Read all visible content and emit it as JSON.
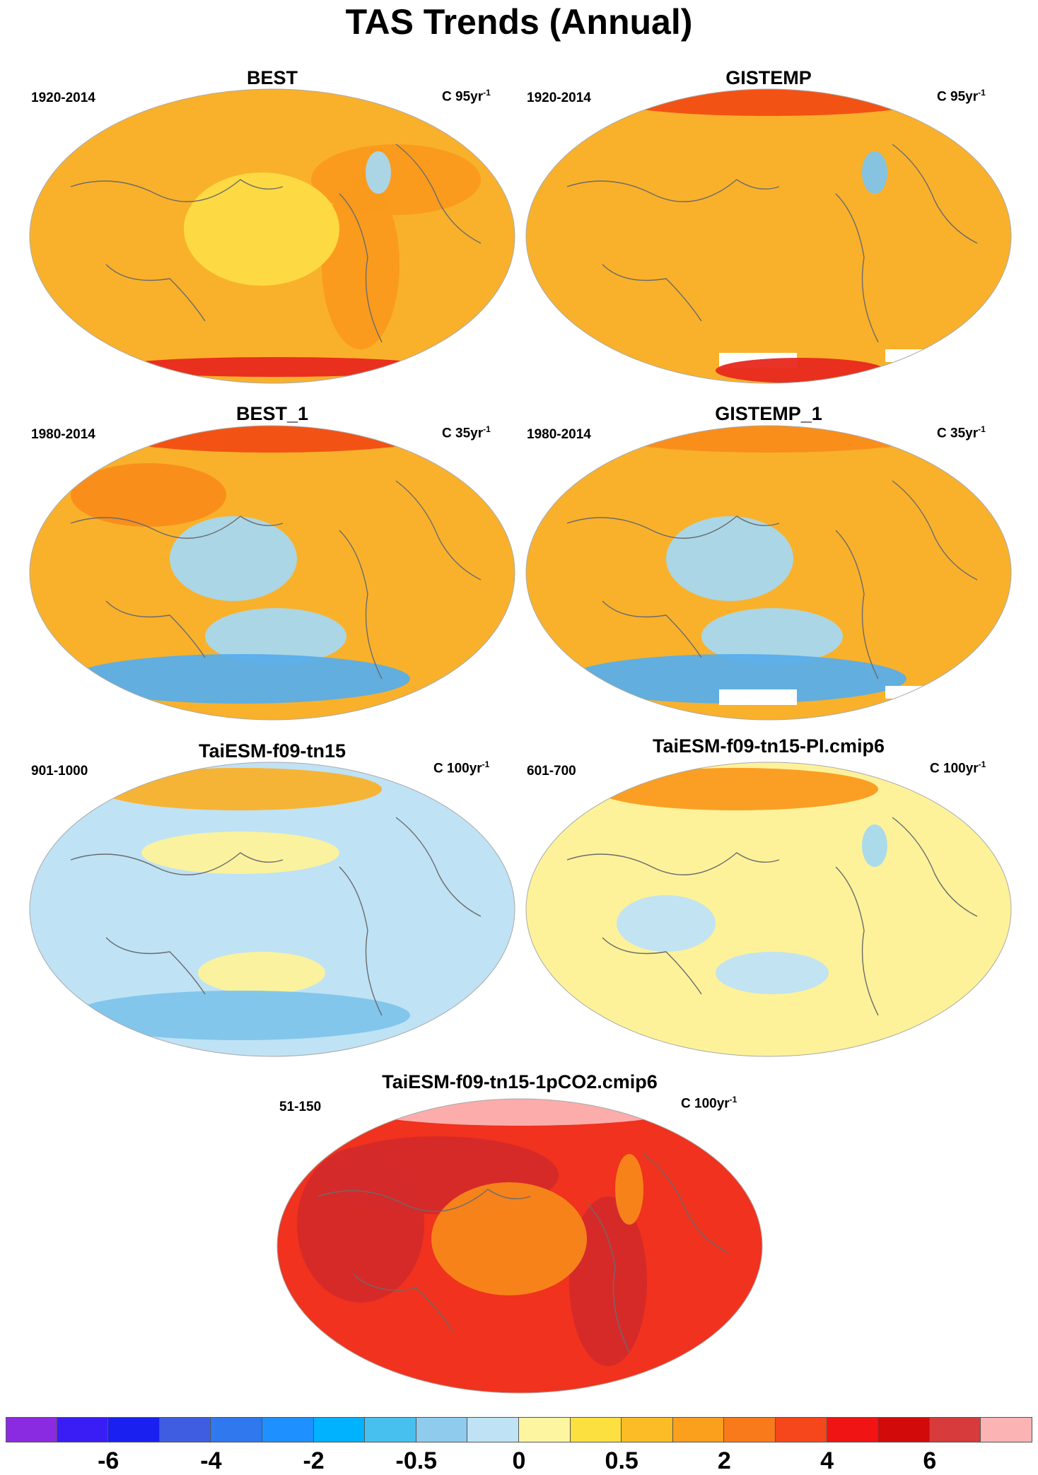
{
  "chart_data": {
    "type": "heatmap",
    "title": "TAS Trends (Annual)",
    "panels": [
      {
        "title": "BEST",
        "period": "1920-2014",
        "units_prefix": "C 95yr",
        "units_exp": "-1",
        "field": {
          "base": "#f9b12b",
          "zones": [
            {
              "region": "global",
              "color": "#f9b12b"
            },
            {
              "region": "western-hemisphere-land",
              "color": "#fa9a1e"
            },
            {
              "region": "central-pacific",
              "color": "#fddc45"
            },
            {
              "region": "north-atlantic-cool",
              "color": "#a7d8ef"
            },
            {
              "region": "antarctic-margin",
              "color": "#e8281e"
            }
          ]
        }
      },
      {
        "title": "GISTEMP",
        "period": "1920-2014",
        "units_prefix": "C 95yr",
        "units_exp": "-1",
        "field": {
          "base": "#f9b12b",
          "zones": [
            {
              "region": "global",
              "color": "#f9b12b"
            },
            {
              "region": "arctic",
              "color": "#f24d14"
            },
            {
              "region": "north-atlantic-cool",
              "color": "#7ec4ea"
            },
            {
              "region": "antarctic-missing",
              "color": "#ffffff"
            },
            {
              "region": "antarctic-warm",
              "color": "#e8281e"
            }
          ]
        }
      },
      {
        "title": "BEST_1",
        "period": "1980-2014",
        "units_prefix": "C 35yr",
        "units_exp": "-1",
        "field": {
          "base": "#f9b12b",
          "zones": [
            {
              "region": "global",
              "color": "#f9b12b"
            },
            {
              "region": "arctic",
              "color": "#f24d14"
            },
            {
              "region": "east-pacific-cool",
              "color": "#a7d8ef"
            },
            {
              "region": "southern-ocean-cool",
              "color": "#59aee9"
            },
            {
              "region": "eurasia-warm",
              "color": "#fa8c1a"
            }
          ]
        }
      },
      {
        "title": "GISTEMP_1",
        "period": "1980-2014",
        "units_prefix": "C 35yr",
        "units_exp": "-1",
        "field": {
          "base": "#f9b12b",
          "zones": [
            {
              "region": "global",
              "color": "#f9b12b"
            },
            {
              "region": "arctic",
              "color": "#fa8c1a"
            },
            {
              "region": "east-pacific-cool",
              "color": "#a7d8ef"
            },
            {
              "region": "southern-ocean-cool",
              "color": "#59aee9"
            },
            {
              "region": "antarctic-missing",
              "color": "#ffffff"
            }
          ]
        }
      },
      {
        "title": "TaiESM-f09-tn15",
        "period": "901-1000",
        "units_prefix": "C 100yr",
        "units_exp": "-1",
        "field": {
          "base": "#bfe2f5",
          "zones": [
            {
              "region": "global",
              "color": "#bfe2f5"
            },
            {
              "region": "tropical-pacific",
              "color": "#fdf29a"
            },
            {
              "region": "southern-ocean-cool",
              "color": "#7ec4ea"
            },
            {
              "region": "arctic-warm",
              "color": "#f9b12b"
            }
          ]
        }
      },
      {
        "title": "TaiESM-f09-tn15-PI.cmip6",
        "period": "601-700",
        "units_prefix": "C 100yr",
        "units_exp": "-1",
        "field": {
          "base": "#fdf29a",
          "zones": [
            {
              "region": "global",
              "color": "#fdf29a"
            },
            {
              "region": "arctic-warm",
              "color": "#fa9a1e"
            },
            {
              "region": "pacific-cool",
              "color": "#bfe2f5"
            },
            {
              "region": "north-atlantic-cool",
              "color": "#a7d8ef"
            }
          ]
        }
      },
      {
        "title": "TaiESM-f09-tn15-1pCO2.cmip6",
        "period": "51-150",
        "units_prefix": "C 100yr",
        "units_exp": "-1",
        "field": {
          "base": "#f0321e",
          "zones": [
            {
              "region": "global",
              "color": "#f0321e"
            },
            {
              "region": "land",
              "color": "#d42a2a"
            },
            {
              "region": "arctic",
              "color": "#fbb3b3"
            },
            {
              "region": "north-atlantic",
              "color": "#f8871a"
            },
            {
              "region": "central-pacific",
              "color": "#f8871a"
            }
          ]
        }
      }
    ],
    "colorbar": {
      "colors": [
        "#8a2be2",
        "#3a1cf5",
        "#1a20f0",
        "#3f5de0",
        "#2f78ee",
        "#1e90ff",
        "#00b2ff",
        "#47c0f0",
        "#8ecbec",
        "#bfe2f5",
        "#fef5a0",
        "#fce040",
        "#fcbc25",
        "#fba01d",
        "#f97a1a",
        "#f5461c",
        "#f01414",
        "#d20a0a",
        "#d83b3b",
        "#fbb3b3"
      ],
      "tick_labels": [
        "-6",
        "-4",
        "-2",
        "-0.5",
        "0",
        "0.5",
        "2",
        "4",
        "6"
      ],
      "tick_boundary_index": [
        2,
        4,
        6,
        8,
        10,
        12,
        14,
        16,
        18
      ]
    }
  }
}
